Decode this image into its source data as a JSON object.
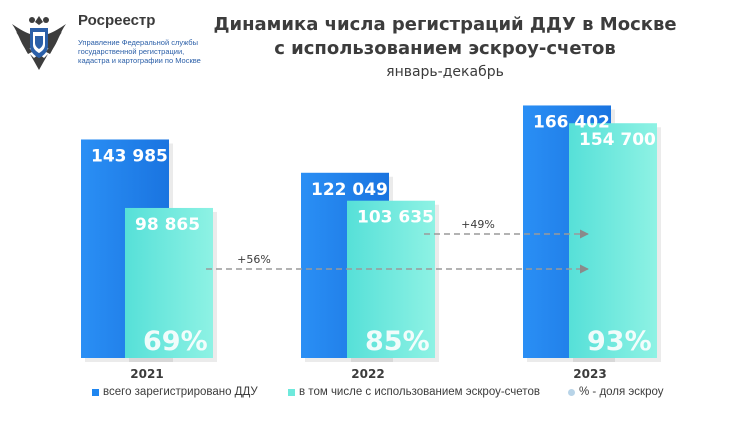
{
  "org": {
    "name": "Росреестр",
    "subtitle": "Управление Федеральной службы государственной регистрации, кадастра и картографии по Москве"
  },
  "colors": {
    "total": "#1f86f0",
    "escrow": "#6ee9dc",
    "share_swatch": "#b8d4e8",
    "arrow": "#9a9a9a"
  },
  "chart_data": {
    "type": "bar",
    "title": "Динамика числа регистраций ДДУ в Москве с использованием эскроу-счетов",
    "subtitle": "январь-декабрь",
    "categories": [
      "2021",
      "2022",
      "2023"
    ],
    "series": [
      {
        "name": "всего зарегистрировано ДДУ",
        "values": [
          143985,
          122049,
          166402
        ],
        "labels": [
          "143 985",
          "122 049",
          "166 402"
        ]
      },
      {
        "name": "в том числе с использованием эскроу-счетов",
        "values": [
          98865,
          103635,
          154700
        ],
        "labels": [
          "98 865",
          "103 635",
          "154 700"
        ]
      }
    ],
    "share_name": "% - доля эскроу",
    "shares": [
      "69%",
      "85%",
      "93%"
    ],
    "growth": [
      {
        "from": "2022",
        "to": "2023",
        "label": "+49%"
      },
      {
        "from": "2021",
        "to": "2023",
        "label": "+56%"
      }
    ],
    "ylim": [
      0,
      170000
    ],
    "grid": false,
    "legend_position": "bottom"
  }
}
